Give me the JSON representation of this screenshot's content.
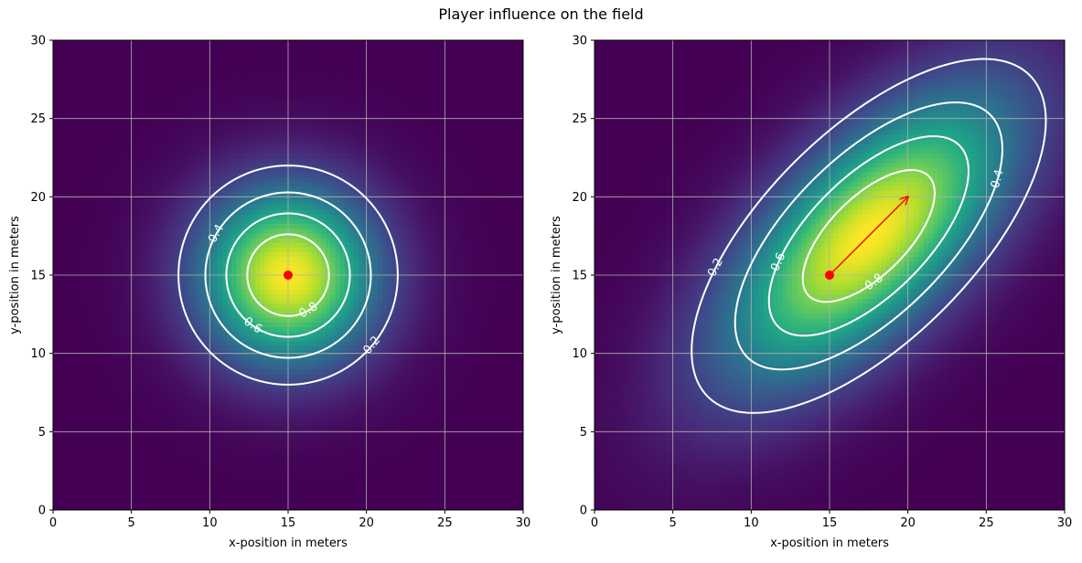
{
  "figure": {
    "title": "Player influence on the field"
  },
  "colors": {
    "contour": "#ffffff",
    "player": "#ff0000",
    "arrow": "#ff0000",
    "grid": "#b0b0b0",
    "colormap": "viridis"
  },
  "chart_data": [
    {
      "type": "heatmap",
      "title": "",
      "xlabel": "x-position in meters",
      "ylabel": "y-position in meters",
      "xlim": [
        0,
        30
      ],
      "ylim": [
        0,
        30
      ],
      "xticks": [
        0,
        5,
        10,
        15,
        20,
        25,
        30
      ],
      "yticks": [
        0,
        5,
        10,
        15,
        20,
        25,
        30
      ],
      "grid": true,
      "player": {
        "x": 15,
        "y": 15
      },
      "influence": {
        "center": [
          15,
          15
        ],
        "sigma_x": 3.9,
        "sigma_y": 3.9,
        "rho": 0.0
      },
      "contour_levels": [
        0.2,
        0.4,
        0.6,
        0.8
      ],
      "contour_labels": [
        "0.4",
        "0.6",
        "0.8",
        "0.2"
      ]
    },
    {
      "type": "heatmap",
      "title": "",
      "xlabel": "x-position in meters",
      "ylabel": "y-position in meters",
      "xlim": [
        0,
        30
      ],
      "ylim": [
        0,
        30
      ],
      "xticks": [
        0,
        5,
        10,
        15,
        20,
        25,
        30
      ],
      "yticks": [
        0,
        5,
        10,
        15,
        20,
        25,
        30
      ],
      "grid": true,
      "player": {
        "x": 15,
        "y": 15
      },
      "velocity_arrow": {
        "from": [
          15,
          15
        ],
        "to": [
          20,
          20
        ]
      },
      "influence": {
        "center": [
          17.5,
          17.5
        ],
        "sigma_x": 6.3,
        "sigma_y": 6.3,
        "rho": 0.65
      },
      "contour_levels": [
        0.2,
        0.4,
        0.6,
        0.8
      ],
      "contour_labels": [
        "0.2",
        "0.6",
        "0.8",
        "0.4"
      ]
    }
  ]
}
